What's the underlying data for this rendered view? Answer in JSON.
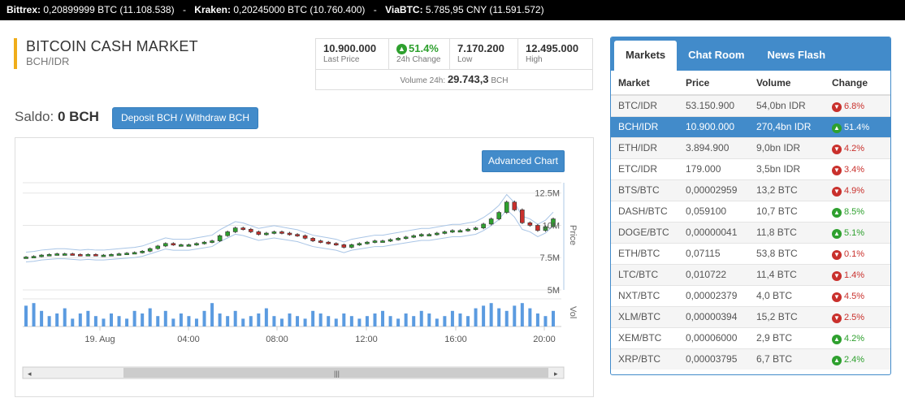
{
  "ticker": {
    "items": [
      {
        "name": "Bittrex:",
        "value": "0,20899999 BTC (11.108.538)"
      },
      {
        "name": "Kraken:",
        "value": "0,20245000 BTC (10.760.400)"
      },
      {
        "name": "ViaBTC:",
        "value": "5.785,95 CNY (11.591.572)"
      }
    ],
    "separator": "-"
  },
  "market": {
    "title": "BITCOIN CASH MARKET",
    "pair": "BCH/IDR"
  },
  "stats": {
    "last_price": "10.900.000",
    "last_price_label": "Last Price",
    "change": "51.4%",
    "change_label": "24h Change",
    "low": "7.170.200",
    "low_label": "Low",
    "high": "12.495.000",
    "high_label": "High",
    "volume_label": "Volume 24h:",
    "volume_value": "29.743,3",
    "volume_unit": "BCH"
  },
  "saldo": {
    "label": "Saldo:",
    "value": "0 BCH"
  },
  "buttons": {
    "deposit": "Deposit BCH / Withdraw BCH",
    "advanced_chart": "Advanced Chart"
  },
  "chart_data": {
    "type": "candlestick",
    "price_axis_label": "Price",
    "volume_axis_label": "Vol",
    "y_ticks": [
      "12.5M",
      "10M",
      "7.5M",
      "5M"
    ],
    "y_tick_values": [
      12500000,
      10000000,
      7500000,
      5000000
    ],
    "x_ticks": [
      "19. Aug",
      "04:00",
      "08:00",
      "12:00",
      "16:00",
      "20:00"
    ],
    "ylim": [
      5000000,
      13300000
    ],
    "grid": true,
    "close": [
      7.55,
      7.6,
      7.7,
      7.75,
      7.8,
      7.8,
      7.75,
      7.7,
      7.75,
      7.7,
      7.7,
      7.75,
      7.8,
      7.85,
      7.9,
      8.0,
      8.2,
      8.4,
      8.6,
      8.5,
      8.5,
      8.5,
      8.6,
      8.7,
      8.8,
      9.2,
      9.5,
      9.8,
      9.7,
      9.5,
      9.3,
      9.4,
      9.5,
      9.4,
      9.3,
      9.2,
      9.0,
      8.8,
      8.7,
      8.6,
      8.5,
      8.3,
      8.5,
      8.6,
      8.7,
      8.8,
      8.8,
      8.9,
      9.0,
      9.1,
      9.2,
      9.3,
      9.3,
      9.4,
      9.5,
      9.6,
      9.6,
      9.7,
      9.8,
      10.1,
      10.5,
      11.0,
      11.8,
      11.2,
      10.2,
      10.0,
      9.6,
      9.9,
      10.5
    ],
    "open": [
      7.5,
      7.55,
      7.6,
      7.7,
      7.75,
      7.8,
      7.8,
      7.75,
      7.7,
      7.75,
      7.7,
      7.7,
      7.75,
      7.8,
      7.85,
      7.9,
      8.0,
      8.2,
      8.4,
      8.6,
      8.5,
      8.5,
      8.5,
      8.6,
      8.7,
      8.8,
      9.2,
      9.5,
      9.8,
      9.7,
      9.5,
      9.3,
      9.4,
      9.5,
      9.4,
      9.3,
      9.2,
      9.0,
      8.8,
      8.7,
      8.6,
      8.5,
      8.3,
      8.5,
      8.6,
      8.7,
      8.8,
      8.8,
      8.9,
      9.0,
      9.1,
      9.2,
      9.3,
      9.3,
      9.4,
      9.5,
      9.6,
      9.6,
      9.7,
      9.8,
      10.1,
      10.5,
      11.0,
      11.8,
      11.2,
      10.2,
      10.0,
      9.6,
      9.9
    ],
    "volume": [
      0.8,
      0.9,
      0.6,
      0.4,
      0.5,
      0.7,
      0.3,
      0.5,
      0.6,
      0.4,
      0.3,
      0.5,
      0.4,
      0.3,
      0.6,
      0.5,
      0.7,
      0.4,
      0.6,
      0.3,
      0.5,
      0.4,
      0.3,
      0.6,
      0.9,
      0.5,
      0.4,
      0.6,
      0.3,
      0.4,
      0.5,
      0.7,
      0.4,
      0.3,
      0.5,
      0.4,
      0.3,
      0.6,
      0.5,
      0.4,
      0.3,
      0.5,
      0.4,
      0.3,
      0.4,
      0.5,
      0.6,
      0.4,
      0.3,
      0.5,
      0.4,
      0.6,
      0.5,
      0.3,
      0.4,
      0.6,
      0.5,
      0.4,
      0.7,
      0.8,
      0.9,
      0.7,
      0.6,
      0.8,
      0.9,
      0.7,
      0.5,
      0.4,
      0.6
    ]
  },
  "tabs": [
    "Markets",
    "Chat Room",
    "News Flash"
  ],
  "table": {
    "headers": [
      "Market",
      "Price",
      "Volume",
      "Change"
    ],
    "rows": [
      {
        "market": "BTC/IDR",
        "price": "53.150.900",
        "volume": "54,0bn IDR",
        "change": "6.8%",
        "dir": "down"
      },
      {
        "market": "BCH/IDR",
        "price": "10.900.000",
        "volume": "270,4bn IDR",
        "change": "51.4%",
        "dir": "up"
      },
      {
        "market": "ETH/IDR",
        "price": "3.894.900",
        "volume": "9,0bn IDR",
        "change": "4.2%",
        "dir": "down"
      },
      {
        "market": "ETC/IDR",
        "price": "179.000",
        "volume": "3,5bn IDR",
        "change": "3.4%",
        "dir": "down"
      },
      {
        "market": "BTS/BTC",
        "price": "0,00002959",
        "volume": "13,2 BTC",
        "change": "4.9%",
        "dir": "down"
      },
      {
        "market": "DASH/BTC",
        "price": "0,059100",
        "volume": "10,7 BTC",
        "change": "8.5%",
        "dir": "up"
      },
      {
        "market": "DOGE/BTC",
        "price": "0,00000041",
        "volume": "11,8 BTC",
        "change": "5.1%",
        "dir": "up"
      },
      {
        "market": "ETH/BTC",
        "price": "0,07115",
        "volume": "53,8 BTC",
        "change": "0.1%",
        "dir": "down"
      },
      {
        "market": "LTC/BTC",
        "price": "0,010722",
        "volume": "11,4 BTC",
        "change": "1.4%",
        "dir": "down"
      },
      {
        "market": "NXT/BTC",
        "price": "0,00002379",
        "volume": "4,0 BTC",
        "change": "4.5%",
        "dir": "down"
      },
      {
        "market": "XLM/BTC",
        "price": "0,00000394",
        "volume": "15,2 BTC",
        "change": "2.5%",
        "dir": "down"
      },
      {
        "market": "XEM/BTC",
        "price": "0,00006000",
        "volume": "2,9 BTC",
        "change": "4.2%",
        "dir": "up"
      },
      {
        "market": "XRP/BTC",
        "price": "0,00003795",
        "volume": "6,7 BTC",
        "change": "2.4%",
        "dir": "up"
      }
    ],
    "selected_index": 1
  },
  "colors": {
    "accent": "#428bca",
    "up": "#2ea02e",
    "down": "#c9302c",
    "title_bar": "#f0ad1a"
  }
}
